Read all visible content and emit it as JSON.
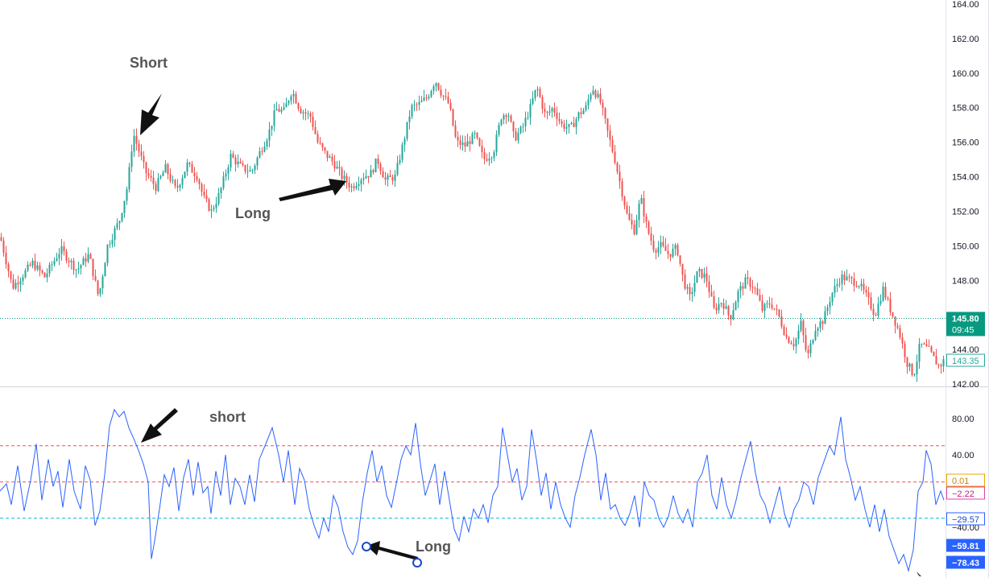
{
  "colors": {
    "up": "#26a69a",
    "down": "#ef5350",
    "oscillator": "#2962ff",
    "last_price": "#089981",
    "band_upper": "#f05050",
    "band_lower": "#00bcd4"
  },
  "annotations": {
    "price_short": "Short",
    "price_long": "Long",
    "osc_short": "short",
    "osc_long": "Long"
  },
  "chart_data": [
    {
      "type": "candlestick",
      "ylim": [
        141,
        164
      ],
      "yticks": [
        "142.00",
        "144.00",
        "146.00",
        "148.00",
        "150.00",
        "152.00",
        "154.00",
        "156.00",
        "158.00",
        "160.00",
        "162.00",
        "164.00"
      ],
      "last_price": {
        "value": "145.80",
        "countdown": "09:45"
      },
      "price_marker": "143.35",
      "close_path": [
        [
          0,
          150.5
        ],
        [
          15,
          147.6
        ],
        [
          40,
          149.0
        ],
        [
          55,
          148.2
        ],
        [
          75,
          149.8
        ],
        [
          95,
          148.6
        ],
        [
          110,
          149.5
        ],
        [
          122,
          147.0
        ],
        [
          133,
          150.0
        ],
        [
          148,
          151.5
        ],
        [
          158,
          153.5
        ],
        [
          165,
          156.5
        ],
        [
          170,
          155.8
        ],
        [
          180,
          154.3
        ],
        [
          193,
          153.4
        ],
        [
          205,
          154.5
        ],
        [
          218,
          153.2
        ],
        [
          232,
          154.7
        ],
        [
          245,
          154.0
        ],
        [
          252,
          152.8
        ],
        [
          262,
          152.0
        ],
        [
          272,
          153.0
        ],
        [
          286,
          155.2
        ],
        [
          300,
          154.5
        ],
        [
          312,
          154.3
        ],
        [
          322,
          155.4
        ],
        [
          333,
          156.5
        ],
        [
          342,
          157.9
        ],
        [
          352,
          157.8
        ],
        [
          362,
          159.0
        ],
        [
          372,
          157.9
        ],
        [
          385,
          157.5
        ],
        [
          394,
          156.0
        ],
        [
          404,
          155.3
        ],
        [
          414,
          154.8
        ],
        [
          424,
          154.0
        ],
        [
          436,
          153.4
        ],
        [
          449,
          154.0
        ],
        [
          460,
          154.2
        ],
        [
          468,
          155.0
        ],
        [
          478,
          153.8
        ],
        [
          490,
          154.0
        ],
        [
          500,
          155.9
        ],
        [
          510,
          158.0
        ],
        [
          520,
          158.2
        ],
        [
          530,
          158.6
        ],
        [
          540,
          159.6
        ],
        [
          548,
          158.8
        ],
        [
          557,
          158.2
        ],
        [
          566,
          156.0
        ],
        [
          577,
          155.8
        ],
        [
          589,
          156.4
        ],
        [
          600,
          155.0
        ],
        [
          612,
          155.4
        ],
        [
          622,
          157.5
        ],
        [
          630,
          157.8
        ],
        [
          638,
          156.2
        ],
        [
          648,
          156.8
        ],
        [
          658,
          158.0
        ],
        [
          666,
          159.2
        ],
        [
          677,
          157.5
        ],
        [
          686,
          158.0
        ],
        [
          697,
          157.0
        ],
        [
          708,
          156.8
        ],
        [
          718,
          157.6
        ],
        [
          727,
          158.0
        ],
        [
          735,
          159.2
        ],
        [
          745,
          158.3
        ],
        [
          755,
          156.4
        ],
        [
          763,
          155.0
        ],
        [
          771,
          153.3
        ],
        [
          779,
          151.6
        ],
        [
          787,
          150.9
        ],
        [
          795,
          152.8
        ],
        [
          803,
          151.0
        ],
        [
          812,
          149.8
        ],
        [
          820,
          150.0
        ],
        [
          830,
          149.5
        ],
        [
          840,
          149.9
        ],
        [
          848,
          148.0
        ],
        [
          856,
          147.0
        ],
        [
          866,
          148.5
        ],
        [
          876,
          148.2
        ],
        [
          886,
          146.3
        ],
        [
          896,
          146.8
        ],
        [
          906,
          145.8
        ],
        [
          916,
          147.3
        ],
        [
          926,
          148.0
        ],
        [
          936,
          147.6
        ],
        [
          946,
          146.3
        ],
        [
          956,
          146.7
        ],
        [
          966,
          146.0
        ],
        [
          976,
          144.7
        ],
        [
          986,
          144.3
        ],
        [
          994,
          145.5
        ],
        [
          1002,
          143.5
        ],
        [
          1012,
          145.3
        ],
        [
          1022,
          145.7
        ],
        [
          1032,
          147.2
        ],
        [
          1044,
          148.2
        ],
        [
          1056,
          148.0
        ],
        [
          1066,
          147.8
        ],
        [
          1076,
          147.0
        ],
        [
          1086,
          146.0
        ],
        [
          1096,
          147.5
        ],
        [
          1106,
          146.2
        ],
        [
          1116,
          145.0
        ],
        [
          1126,
          143.2
        ],
        [
          1134,
          142.5
        ],
        [
          1142,
          144.3
        ],
        [
          1152,
          144.0
        ],
        [
          1160,
          143.4
        ],
        [
          1166,
          143.0
        ],
        [
          1172,
          143.4
        ]
      ]
    },
    {
      "type": "line",
      "ylim": [
        -90,
        100
      ],
      "yticks": [
        "80.00",
        "40.00",
        "-40.00"
      ],
      "reference_lines": [
        50,
        10,
        -30
      ],
      "value_badges": [
        "0.01",
        "-2.22",
        "-29.57",
        "-59.81",
        "-78.43"
      ],
      "value_path": [
        [
          0,
          0
        ],
        [
          8,
          8
        ],
        [
          14,
          -15
        ],
        [
          22,
          28
        ],
        [
          30,
          -22
        ],
        [
          38,
          12
        ],
        [
          45,
          52
        ],
        [
          52,
          -10
        ],
        [
          60,
          35
        ],
        [
          66,
          5
        ],
        [
          72,
          22
        ],
        [
          78,
          -18
        ],
        [
          86,
          35
        ],
        [
          92,
          0
        ],
        [
          100,
          -20
        ],
        [
          106,
          28
        ],
        [
          112,
          12
        ],
        [
          118,
          -38
        ],
        [
          124,
          -22
        ],
        [
          130,
          18
        ],
        [
          136,
          72
        ],
        [
          142,
          90
        ],
        [
          148,
          82
        ],
        [
          154,
          88
        ],
        [
          160,
          70
        ],
        [
          166,
          58
        ],
        [
          172,
          45
        ],
        [
          178,
          30
        ],
        [
          184,
          10
        ],
        [
          188,
          -75
        ],
        [
          192,
          -55
        ],
        [
          198,
          -20
        ],
        [
          204,
          18
        ],
        [
          210,
          5
        ],
        [
          216,
          26
        ],
        [
          222,
          -22
        ],
        [
          228,
          15
        ],
        [
          234,
          35
        ],
        [
          240,
          -5
        ],
        [
          246,
          32
        ],
        [
          252,
          -2
        ],
        [
          258,
          5
        ],
        [
          262,
          -25
        ],
        [
          268,
          22
        ],
        [
          274,
          -5
        ],
        [
          280,
          40
        ],
        [
          286,
          -15
        ],
        [
          292,
          14
        ],
        [
          298,
          5
        ],
        [
          304,
          -15
        ],
        [
          310,
          18
        ],
        [
          316,
          -12
        ],
        [
          322,
          35
        ],
        [
          330,
          52
        ],
        [
          338,
          70
        ],
        [
          346,
          40
        ],
        [
          352,
          10
        ],
        [
          358,
          45
        ],
        [
          366,
          -15
        ],
        [
          372,
          25
        ],
        [
          378,
          12
        ],
        [
          384,
          -20
        ],
        [
          390,
          -38
        ],
        [
          396,
          -52
        ],
        [
          402,
          -30
        ],
        [
          408,
          -45
        ],
        [
          414,
          -5
        ],
        [
          420,
          -18
        ],
        [
          426,
          -45
        ],
        [
          432,
          -62
        ],
        [
          438,
          -70
        ],
        [
          444,
          -55
        ],
        [
          450,
          -12
        ],
        [
          456,
          20
        ],
        [
          462,
          45
        ],
        [
          468,
          10
        ],
        [
          474,
          28
        ],
        [
          480,
          -5
        ],
        [
          486,
          -18
        ],
        [
          492,
          8
        ],
        [
          498,
          35
        ],
        [
          504,
          50
        ],
        [
          510,
          40
        ],
        [
          516,
          75
        ],
        [
          522,
          30
        ],
        [
          528,
          -5
        ],
        [
          534,
          12
        ],
        [
          540,
          30
        ],
        [
          546,
          -15
        ],
        [
          552,
          22
        ],
        [
          558,
          -10
        ],
        [
          564,
          -42
        ],
        [
          570,
          -55
        ],
        [
          576,
          -28
        ],
        [
          582,
          -45
        ],
        [
          588,
          -20
        ],
        [
          594,
          -30
        ],
        [
          600,
          -15
        ],
        [
          606,
          -35
        ],
        [
          612,
          -5
        ],
        [
          618,
          5
        ],
        [
          624,
          70
        ],
        [
          630,
          40
        ],
        [
          636,
          10
        ],
        [
          642,
          25
        ],
        [
          648,
          -10
        ],
        [
          654,
          5
        ],
        [
          660,
          68
        ],
        [
          666,
          35
        ],
        [
          672,
          -5
        ],
        [
          678,
          20
        ],
        [
          684,
          -20
        ],
        [
          690,
          10
        ],
        [
          696,
          -15
        ],
        [
          702,
          -30
        ],
        [
          708,
          -40
        ],
        [
          714,
          -5
        ],
        [
          720,
          15
        ],
        [
          726,
          40
        ],
        [
          734,
          68
        ],
        [
          740,
          40
        ],
        [
          746,
          -10
        ],
        [
          752,
          20
        ],
        [
          758,
          -20
        ],
        [
          764,
          -15
        ],
        [
          770,
          -30
        ],
        [
          776,
          -38
        ],
        [
          782,
          -25
        ],
        [
          788,
          -5
        ],
        [
          794,
          -40
        ],
        [
          800,
          10
        ],
        [
          806,
          -5
        ],
        [
          812,
          -10
        ],
        [
          818,
          -30
        ],
        [
          824,
          -40
        ],
        [
          830,
          -28
        ],
        [
          836,
          -5
        ],
        [
          842,
          -25
        ],
        [
          848,
          -35
        ],
        [
          854,
          -20
        ],
        [
          860,
          -40
        ],
        [
          866,
          10
        ],
        [
          872,
          20
        ],
        [
          878,
          40
        ],
        [
          884,
          -5
        ],
        [
          890,
          -20
        ],
        [
          896,
          15
        ],
        [
          902,
          -15
        ],
        [
          908,
          -30
        ],
        [
          914,
          -10
        ],
        [
          920,
          15
        ],
        [
          926,
          35
        ],
        [
          932,
          55
        ],
        [
          938,
          20
        ],
        [
          944,
          -5
        ],
        [
          950,
          -15
        ],
        [
          956,
          -35
        ],
        [
          962,
          -15
        ],
        [
          968,
          5
        ],
        [
          974,
          -25
        ],
        [
          980,
          -40
        ],
        [
          986,
          -20
        ],
        [
          992,
          -10
        ],
        [
          998,
          10
        ],
        [
          1004,
          5
        ],
        [
          1010,
          -15
        ],
        [
          1016,
          15
        ],
        [
          1022,
          30
        ],
        [
          1030,
          50
        ],
        [
          1036,
          40
        ],
        [
          1044,
          82
        ],
        [
          1050,
          35
        ],
        [
          1056,
          15
        ],
        [
          1062,
          -10
        ],
        [
          1068,
          5
        ],
        [
          1074,
          -20
        ],
        [
          1080,
          -40
        ],
        [
          1086,
          -15
        ],
        [
          1092,
          -45
        ],
        [
          1098,
          -20
        ],
        [
          1104,
          -50
        ],
        [
          1110,
          -65
        ],
        [
          1116,
          -80
        ],
        [
          1122,
          -70
        ],
        [
          1128,
          -88
        ],
        [
          1134,
          -65
        ],
        [
          1140,
          0
        ],
        [
          1146,
          10
        ],
        [
          1150,
          45
        ],
        [
          1156,
          30
        ],
        [
          1162,
          -15
        ],
        [
          1168,
          0
        ],
        [
          1172,
          -10
        ]
      ]
    }
  ]
}
